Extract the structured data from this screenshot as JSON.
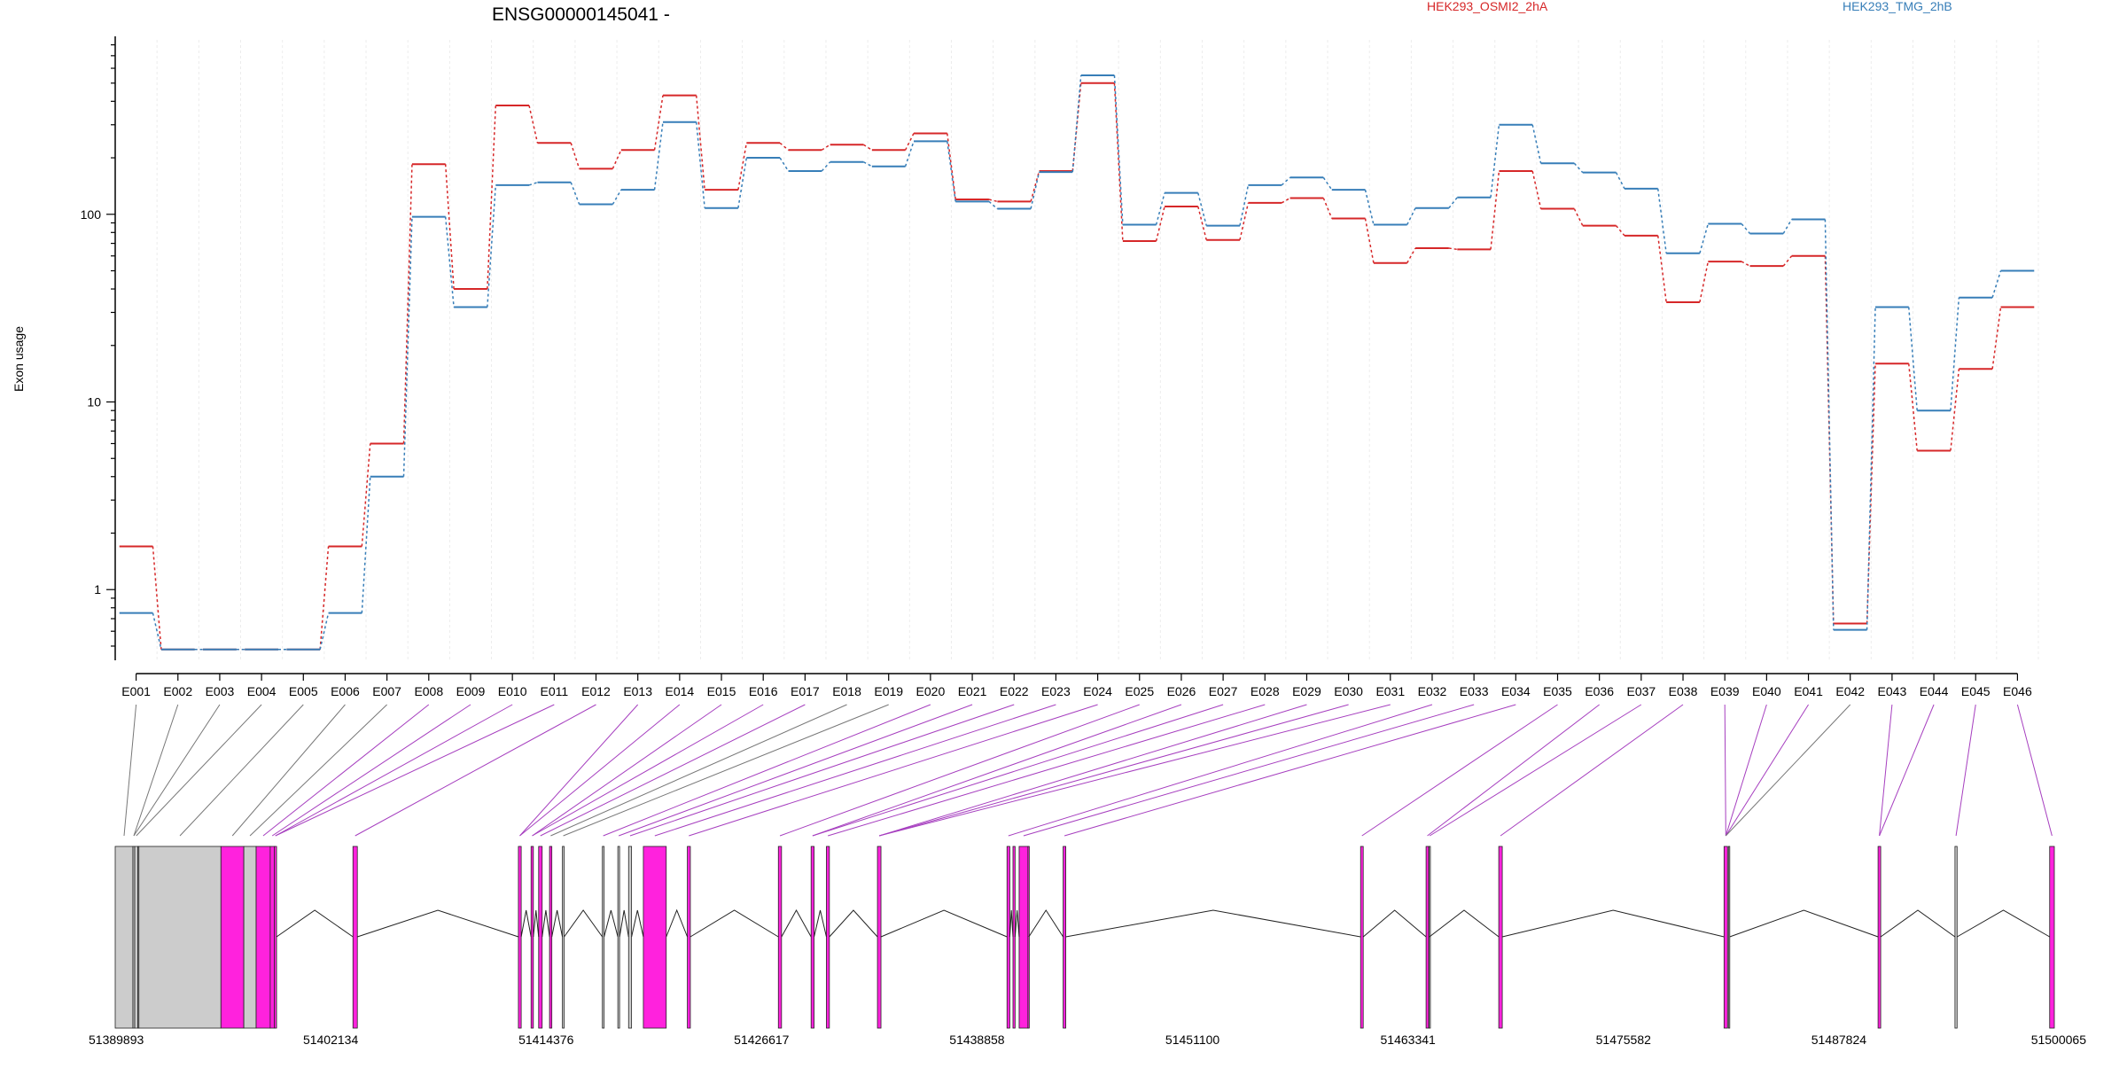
{
  "chart_data": {
    "type": "line",
    "title": "ENSG00000145041 -",
    "xlabel": "",
    "ylabel": "Exon usage",
    "yscale": "log",
    "ylim": [
      0.42,
      850
    ],
    "grid": true,
    "legend_position": "top-right",
    "yticks": [
      1,
      10,
      100
    ],
    "ytick_labels": [
      "1",
      "10",
      "100"
    ],
    "categories": [
      "E001",
      "E002",
      "E003",
      "E004",
      "E005",
      "E006",
      "E007",
      "E008",
      "E009",
      "E010",
      "E011",
      "E012",
      "E013",
      "E014",
      "E015",
      "E016",
      "E017",
      "E018",
      "E019",
      "E020",
      "E021",
      "E022",
      "E023",
      "E024",
      "E025",
      "E026",
      "E027",
      "E028",
      "E029",
      "E030",
      "E031",
      "E032",
      "E033",
      "E034",
      "E035",
      "E036",
      "E037",
      "E038",
      "E039",
      "E040",
      "E041",
      "E042",
      "E043",
      "E044",
      "E045",
      "E046"
    ],
    "series": [
      {
        "name": "HEK293_OSMI2_2hA",
        "color": "#d62728",
        "values": [
          1.7,
          0.48,
          0.48,
          0.48,
          0.48,
          1.7,
          6,
          185,
          40,
          380,
          240,
          175,
          220,
          430,
          135,
          240,
          220,
          235,
          220,
          270,
          120,
          117,
          170,
          500,
          72,
          110,
          73,
          115,
          122,
          95,
          55,
          66,
          65,
          170,
          107,
          87,
          77,
          34,
          56,
          53,
          60,
          0.66,
          16,
          5.5,
          15,
          32
        ]
      },
      {
        "name": "HEK293_TMG_2hB",
        "color": "#377eb8",
        "values": [
          0.75,
          0.48,
          0.48,
          0.48,
          0.48,
          0.75,
          4,
          97,
          32,
          143,
          148,
          113,
          135,
          310,
          108,
          200,
          170,
          190,
          180,
          245,
          117,
          107,
          168,
          550,
          88,
          130,
          87,
          143,
          157,
          135,
          88,
          108,
          123,
          300,
          187,
          167,
          137,
          62,
          89,
          79,
          94,
          0.61,
          32,
          9,
          36,
          50
        ]
      }
    ],
    "genomic_track": {
      "axis_labels": [
        "51389893",
        "51402134",
        "51414376",
        "51426617",
        "51438858",
        "51451100",
        "51463341",
        "51475582",
        "51487824",
        "51500065"
      ],
      "start": 51389893,
      "end": 51500065,
      "exon_colors": {
        "significant": "#ff22dd",
        "not_significant": "#cccccc",
        "outline": "#222222"
      },
      "exons": [
        {
          "id": "E001",
          "start": 51389893,
          "end": 51390900,
          "significant": false
        },
        {
          "id": "E002",
          "start": 51390900,
          "end": 51391000,
          "significant": false
        },
        {
          "id": "E003",
          "start": 51391000,
          "end": 51391180,
          "significant": false
        },
        {
          "id": "E004",
          "start": 51391180,
          "end": 51391240,
          "significant": false
        },
        {
          "id": "E005",
          "start": 51391240,
          "end": 51395900,
          "significant": false
        },
        {
          "id": "E006",
          "start": 51395900,
          "end": 51397200,
          "significant": true
        },
        {
          "id": "E007",
          "start": 51397200,
          "end": 51397900,
          "significant": false
        },
        {
          "id": "E008",
          "start": 51397900,
          "end": 51398700,
          "significant": true
        },
        {
          "id": "E009",
          "start": 51398700,
          "end": 51398930,
          "significant": true
        },
        {
          "id": "E010",
          "start": 51398930,
          "end": 51399060,
          "significant": true
        },
        {
          "id": "E011",
          "start": 51403400,
          "end": 51403650,
          "significant": true
        },
        {
          "id": "E012",
          "start": 51412800,
          "end": 51412960,
          "significant": true
        },
        {
          "id": "E013",
          "start": 51413520,
          "end": 51413650,
          "significant": true
        },
        {
          "id": "E014",
          "start": 51413950,
          "end": 51414150,
          "significant": true
        },
        {
          "id": "E015",
          "start": 51414570,
          "end": 51414700,
          "significant": true
        },
        {
          "id": "E016",
          "start": 51415300,
          "end": 51415400,
          "significant": false
        },
        {
          "id": "E017",
          "start": 51417570,
          "end": 51417670,
          "significant": false
        },
        {
          "id": "E018",
          "start": 51418450,
          "end": 51418550,
          "significant": false
        },
        {
          "id": "E019",
          "start": 51419060,
          "end": 51419230,
          "significant": false
        },
        {
          "id": "E020",
          "start": 51419900,
          "end": 51421200,
          "significant": true
        },
        {
          "id": "E021",
          "start": 51422400,
          "end": 51422570,
          "significant": true
        },
        {
          "id": "E022",
          "start": 51427570,
          "end": 51427750,
          "significant": true
        },
        {
          "id": "E023",
          "start": 51429430,
          "end": 51429600,
          "significant": true
        },
        {
          "id": "E024",
          "start": 51430300,
          "end": 51430470,
          "significant": true
        },
        {
          "id": "E025",
          "start": 51433200,
          "end": 51433400,
          "significant": true
        },
        {
          "id": "E026",
          "start": 51440560,
          "end": 51440720,
          "significant": true
        },
        {
          "id": "E027",
          "start": 51440900,
          "end": 51441020,
          "significant": true
        },
        {
          "id": "E028",
          "start": 51441250,
          "end": 51441750,
          "significant": true
        },
        {
          "id": "E029",
          "start": 51441750,
          "end": 51441800,
          "significant": true
        },
        {
          "id": "E030",
          "start": 51443750,
          "end": 51443900,
          "significant": true
        },
        {
          "id": "E031",
          "start": 51460650,
          "end": 51460800,
          "significant": true
        },
        {
          "id": "E032",
          "start": 51464370,
          "end": 51464520,
          "significant": true
        },
        {
          "id": "E033",
          "start": 51464540,
          "end": 51464560,
          "significant": false
        },
        {
          "id": "E034",
          "start": 51468500,
          "end": 51468700,
          "significant": true
        },
        {
          "id": "E035",
          "start": 51481300,
          "end": 51481500,
          "significant": true
        },
        {
          "id": "E036",
          "start": 51481550,
          "end": 51481620,
          "significant": false
        },
        {
          "id": "E037",
          "start": 51490050,
          "end": 51490200,
          "significant": true
        },
        {
          "id": "E038",
          "start": 51494420,
          "end": 51494540,
          "significant": false
        },
        {
          "id": "E039",
          "start": 51499800,
          "end": 51500065,
          "significant": true
        }
      ],
      "mapping_from_exon": [
        "E001",
        "E002",
        "E003",
        "E004",
        "E005",
        "E006",
        "E007",
        "E008",
        "E009",
        "E010",
        "E011",
        "E012",
        "E013",
        "E014",
        "E015",
        "E016",
        "E017",
        "E018",
        "E019",
        "E020",
        "E021",
        "E022",
        "E023",
        "E024",
        "E025",
        "E026",
        "E027",
        "E028",
        "E029",
        "E030",
        "E031",
        "E032",
        "E033",
        "E034",
        "E035",
        "E036",
        "E037",
        "E038",
        "E039",
        "E040",
        "E041",
        "E042",
        "E043",
        "E044",
        "E045",
        "E046"
      ],
      "mapping_to_exon": [
        "E001",
        "E002",
        "E002",
        "E003",
        "E005",
        "E006",
        "E007",
        "E008",
        "E009",
        "E010",
        "E010",
        "E011",
        "E012",
        "E012",
        "E013",
        "E013",
        "E014",
        "E015",
        "E016",
        "E017",
        "E018",
        "E019",
        "E020",
        "E021",
        "E022",
        "E023",
        "E023",
        "E024",
        "E025",
        "E025",
        "E025",
        "E026",
        "E028",
        "E030",
        "E031",
        "E032",
        "E033",
        "E034",
        "E035",
        "E035",
        "E035",
        "E035",
        "E037",
        "E037",
        "E038",
        "E039"
      ],
      "mapping_significant": [
        false,
        false,
        false,
        false,
        false,
        false,
        false,
        true,
        true,
        true,
        true,
        true,
        true,
        true,
        true,
        true,
        true,
        false,
        false,
        true,
        true,
        true,
        true,
        true,
        true,
        true,
        true,
        true,
        true,
        true,
        true,
        true,
        true,
        true,
        true,
        true,
        true,
        true,
        true,
        true,
        true,
        false,
        true,
        true,
        true,
        true
      ]
    }
  }
}
